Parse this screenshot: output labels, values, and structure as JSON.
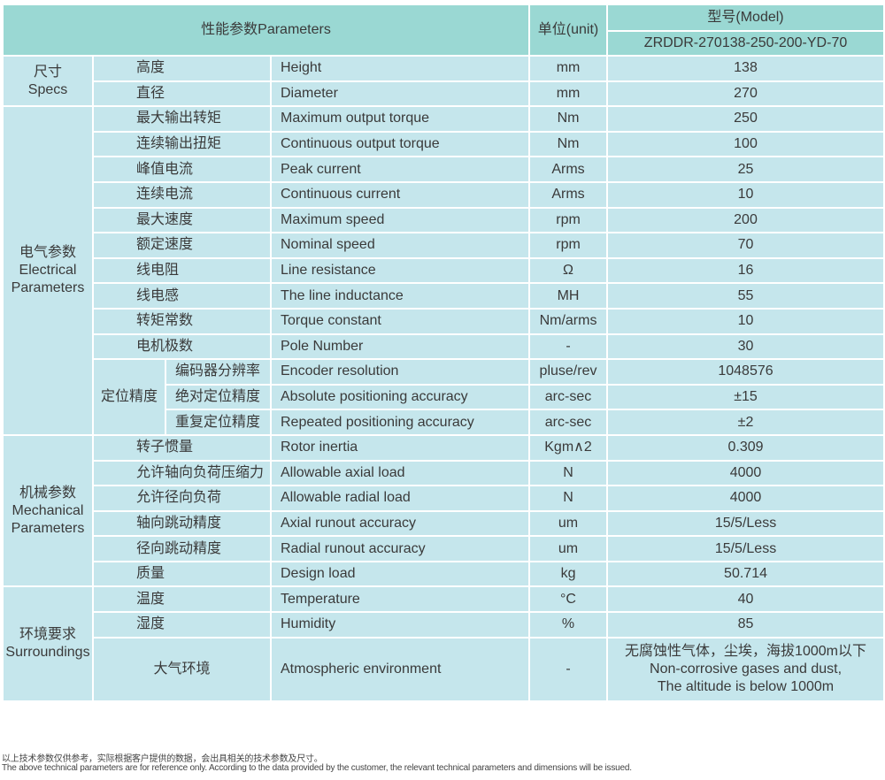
{
  "header": {
    "parameters": "性能参数Parameters",
    "unit": "单位(unit)",
    "model_label": "型号(Model)",
    "model": "ZRDDR-270138-250-200-YD-70"
  },
  "groups": [
    {
      "zh": "尺寸",
      "en": "Specs",
      "rows": [
        {
          "zh": "高度",
          "en": "Height",
          "unit": "mm",
          "value": "138"
        },
        {
          "zh": "直径",
          "en": "Diameter",
          "unit": "mm",
          "value": "270"
        }
      ]
    },
    {
      "zh": "电气参数",
      "en": "Electrical Parameters",
      "rows": [
        {
          "zh": "最大输出转矩",
          "en": "Maximum output torque",
          "unit": "Nm",
          "value": "250"
        },
        {
          "zh": "连续输出扭矩",
          "en": "Continuous output torque",
          "unit": "Nm",
          "value": "100"
        },
        {
          "zh": "峰值电流",
          "en": "Peak current",
          "unit": "Arms",
          "value": "25"
        },
        {
          "zh": "连续电流",
          "en": "Continuous current",
          "unit": "Arms",
          "value": "10"
        },
        {
          "zh": "最大速度",
          "en": "Maximum speed",
          "unit": "rpm",
          "value": "200"
        },
        {
          "zh": "额定速度",
          "en": "Nominal speed",
          "unit": "rpm",
          "value": "70"
        },
        {
          "zh": "线电阻",
          "en": "Line resistance",
          "unit": "Ω",
          "value": "16"
        },
        {
          "zh": "线电感",
          "en": "The line inductance",
          "unit": "MH",
          "value": "55"
        },
        {
          "zh": "转矩常数",
          "en": "Torque constant",
          "unit": "Nm/arms",
          "value": "10"
        },
        {
          "zh": "电机极数",
          "en": "Pole Number",
          "unit": "-",
          "value": "30"
        }
      ],
      "subgroup": {
        "zh": "定位精度",
        "rows": [
          {
            "zh": "编码器分辨率",
            "en": "Encoder resolution",
            "unit": "pluse/rev",
            "value": "1048576"
          },
          {
            "zh": "绝对定位精度",
            "en": "Absolute positioning accuracy",
            "unit": "arc-sec",
            "value": "±15"
          },
          {
            "zh": "重复定位精度",
            "en": "Repeated positioning accuracy",
            "unit": "arc-sec",
            "value": "±2"
          }
        ]
      }
    },
    {
      "zh": "机械参数",
      "en": "Mechanical Parameters",
      "rows": [
        {
          "zh": "转子惯量",
          "en": "Rotor inertia",
          "unit": "Kgm∧2",
          "value": "0.309"
        },
        {
          "zh": "允许轴向负荷压缩力",
          "en": "Allowable axial load",
          "unit": "N",
          "value": "4000"
        },
        {
          "zh": "允许径向负荷",
          "en": "Allowable radial load",
          "unit": "N",
          "value": "4000"
        },
        {
          "zh": "轴向跳动精度",
          "en": "Axial runout accuracy",
          "unit": "um",
          "value": "15/5/Less"
        },
        {
          "zh": "径向跳动精度",
          "en": "Radial runout accuracy",
          "unit": "um",
          "value": "15/5/Less"
        },
        {
          "zh": "质量",
          "en": "Design load",
          "unit": "kg",
          "value": "50.714"
        }
      ]
    },
    {
      "zh": "环境要求",
      "en": "Surroundings",
      "rows": [
        {
          "zh": "温度",
          "en": "Temperature",
          "unit": "°C",
          "value": "40"
        },
        {
          "zh": "湿度",
          "en": "Humidity",
          "unit": "%",
          "value": "85"
        },
        {
          "zh": "大气环境",
          "en": "Atmospheric environment",
          "unit": "-",
          "value_lines": [
            "无腐蚀性气体，尘埃，海拔1000m以下",
            "Non-corrosive gases and dust,",
            "The altitude is below 1000m"
          ]
        }
      ]
    }
  ],
  "footnote": {
    "zh": "以上技术参数仅供参考，实际根据客户提供的数据，会出具相关的技术参数及尺寸。",
    "en": "The above technical parameters are for reference only. According to the data provided by the customer, the relevant technical parameters and dimensions will be issued."
  },
  "colors": {
    "header_bg": "#9ad8d3",
    "body_bg": "#c5e6ec",
    "grid": "#ffffff"
  }
}
